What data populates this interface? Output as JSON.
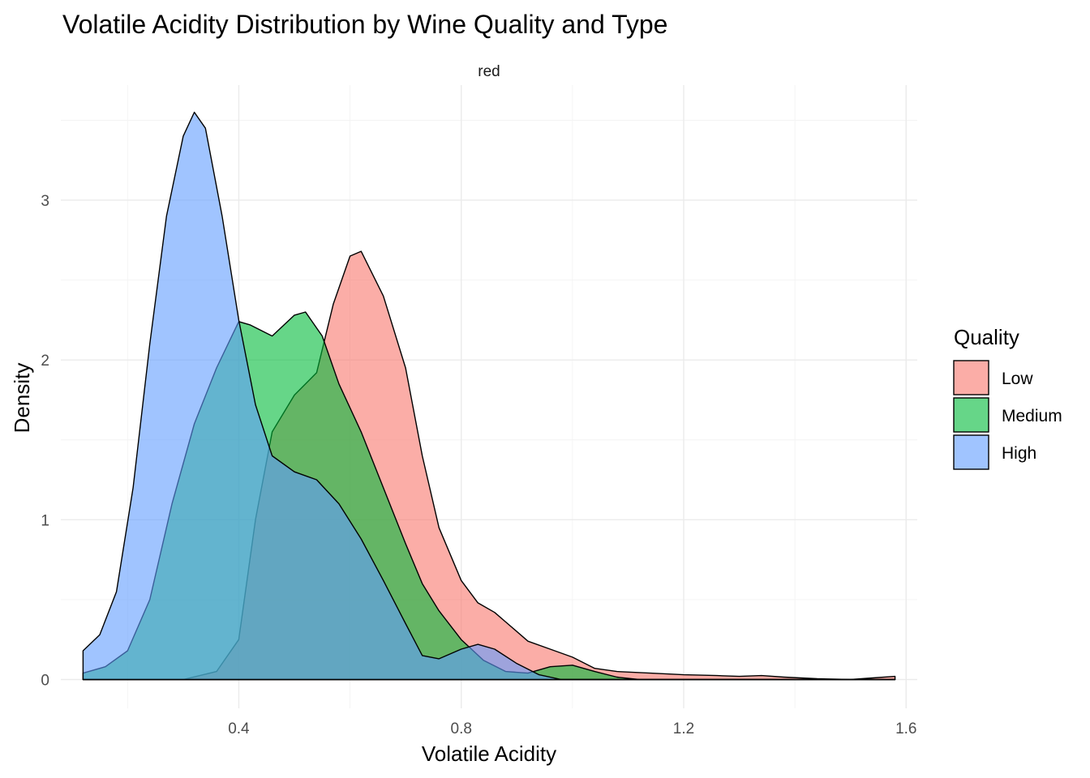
{
  "chart_data": {
    "type": "area",
    "title": "Volatile Acidity Distribution by Wine Quality and Type",
    "facet": "red",
    "xlabel": "Volatile Acidity",
    "ylabel": "Density",
    "xlim": [
      0.08,
      1.62
    ],
    "ylim": [
      -0.18,
      3.72
    ],
    "x_ticks": [
      0.4,
      0.8,
      1.2,
      1.6
    ],
    "x_tick_labels": [
      "0.4",
      "0.8",
      "1.2",
      "1.6"
    ],
    "y_ticks": [
      0,
      1,
      2,
      3
    ],
    "y_tick_labels": [
      "0",
      "1",
      "2",
      "3"
    ],
    "grid": true,
    "legend": {
      "title": "Quality",
      "position": "right"
    },
    "series": [
      {
        "name": "Low",
        "color": "#F8766D",
        "points": [
          [
            0.12,
            0.0
          ],
          [
            0.2,
            0.0
          ],
          [
            0.3,
            0.0
          ],
          [
            0.36,
            0.05
          ],
          [
            0.4,
            0.25
          ],
          [
            0.43,
            1.0
          ],
          [
            0.46,
            1.55
          ],
          [
            0.5,
            1.78
          ],
          [
            0.54,
            1.92
          ],
          [
            0.57,
            2.35
          ],
          [
            0.6,
            2.65
          ],
          [
            0.62,
            2.68
          ],
          [
            0.66,
            2.4
          ],
          [
            0.7,
            1.95
          ],
          [
            0.73,
            1.4
          ],
          [
            0.76,
            0.95
          ],
          [
            0.8,
            0.62
          ],
          [
            0.83,
            0.48
          ],
          [
            0.86,
            0.42
          ],
          [
            0.88,
            0.36
          ],
          [
            0.92,
            0.24
          ],
          [
            0.96,
            0.19
          ],
          [
            1.0,
            0.14
          ],
          [
            1.04,
            0.07
          ],
          [
            1.08,
            0.05
          ],
          [
            1.14,
            0.04
          ],
          [
            1.2,
            0.03
          ],
          [
            1.26,
            0.025
          ],
          [
            1.3,
            0.02
          ],
          [
            1.34,
            0.025
          ],
          [
            1.38,
            0.015
          ],
          [
            1.44,
            0.005
          ],
          [
            1.5,
            0.0
          ],
          [
            1.54,
            0.01
          ],
          [
            1.58,
            0.02
          ]
        ]
      },
      {
        "name": "Medium",
        "color": "#00BA38",
        "points": [
          [
            0.12,
            0.04
          ],
          [
            0.16,
            0.08
          ],
          [
            0.2,
            0.18
          ],
          [
            0.24,
            0.5
          ],
          [
            0.28,
            1.1
          ],
          [
            0.32,
            1.6
          ],
          [
            0.36,
            1.95
          ],
          [
            0.4,
            2.24
          ],
          [
            0.42,
            2.22
          ],
          [
            0.46,
            2.15
          ],
          [
            0.5,
            2.28
          ],
          [
            0.52,
            2.3
          ],
          [
            0.55,
            2.15
          ],
          [
            0.58,
            1.85
          ],
          [
            0.62,
            1.55
          ],
          [
            0.66,
            1.2
          ],
          [
            0.7,
            0.85
          ],
          [
            0.73,
            0.6
          ],
          [
            0.76,
            0.43
          ],
          [
            0.8,
            0.25
          ],
          [
            0.84,
            0.12
          ],
          [
            0.88,
            0.05
          ],
          [
            0.92,
            0.04
          ],
          [
            0.96,
            0.08
          ],
          [
            1.0,
            0.09
          ],
          [
            1.04,
            0.05
          ],
          [
            1.08,
            0.015
          ],
          [
            1.12,
            0.0
          ],
          [
            1.58,
            0.0
          ]
        ]
      },
      {
        "name": "High",
        "color": "#619CFF",
        "points": [
          [
            0.12,
            0.18
          ],
          [
            0.15,
            0.28
          ],
          [
            0.18,
            0.55
          ],
          [
            0.21,
            1.2
          ],
          [
            0.24,
            2.1
          ],
          [
            0.27,
            2.9
          ],
          [
            0.3,
            3.4
          ],
          [
            0.32,
            3.55
          ],
          [
            0.34,
            3.45
          ],
          [
            0.37,
            2.9
          ],
          [
            0.4,
            2.25
          ],
          [
            0.43,
            1.72
          ],
          [
            0.46,
            1.4
          ],
          [
            0.5,
            1.3
          ],
          [
            0.54,
            1.25
          ],
          [
            0.58,
            1.1
          ],
          [
            0.62,
            0.88
          ],
          [
            0.66,
            0.62
          ],
          [
            0.7,
            0.35
          ],
          [
            0.73,
            0.15
          ],
          [
            0.76,
            0.13
          ],
          [
            0.8,
            0.19
          ],
          [
            0.83,
            0.22
          ],
          [
            0.86,
            0.19
          ],
          [
            0.9,
            0.1
          ],
          [
            0.94,
            0.03
          ],
          [
            0.98,
            0.0
          ],
          [
            1.58,
            0.0
          ]
        ]
      }
    ]
  }
}
